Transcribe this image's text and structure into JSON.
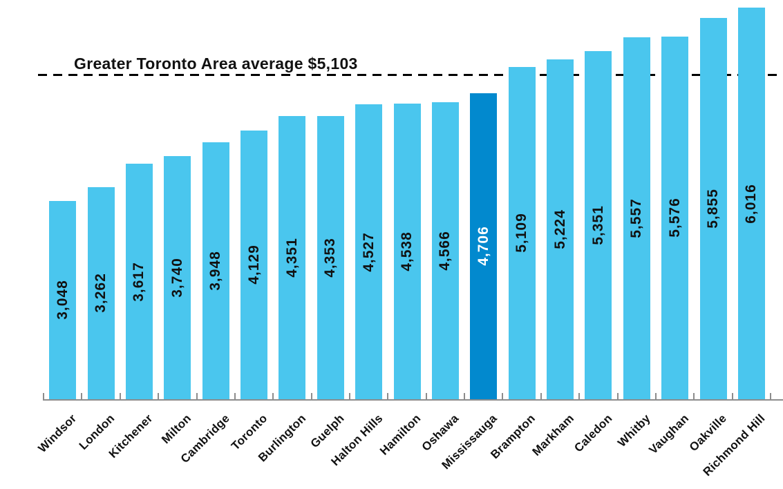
{
  "chart_data": {
    "type": "bar",
    "title": "",
    "xlabel": "",
    "ylabel": "",
    "categories": [
      "Windsor",
      "London",
      "Kitchener",
      "Milton",
      "Cambridge",
      "Toronto",
      "Burlington",
      "Guelph",
      "Halton Hills",
      "Hamilton",
      "Oshawa",
      "Mississauga",
      "Brampton",
      "Markham",
      "Caledon",
      "Whitby",
      "Vaughan",
      "Oakville",
      "Richmond Hill"
    ],
    "values": [
      3048,
      3262,
      3617,
      3740,
      3948,
      4129,
      4351,
      4353,
      4527,
      4538,
      4566,
      4706,
      5109,
      5224,
      5351,
      5557,
      5576,
      5855,
      6016
    ],
    "value_labels": [
      "3,048",
      "3,262",
      "3,617",
      "3,740",
      "3,948",
      "4,129",
      "4,351",
      "4,353",
      "4,527",
      "4,538",
      "4,566",
      "4,706",
      "5,109",
      "5,224",
      "5,351",
      "5,557",
      "5,576",
      "5,855",
      "6,016"
    ],
    "highlight_category": "Mississauga",
    "highlight_index": 11,
    "average_line": {
      "label": "Greater Toronto Area average $5,103",
      "value": 5103
    },
    "ylim": [
      0,
      6100
    ],
    "grid": false,
    "legend_position": "none",
    "value_labels_position": "inside-bar-vertical",
    "category_labels_rotation_deg": 45,
    "colors": {
      "bar": "#4AC6EE",
      "highlight_bar": "#0289CE",
      "value_label": "#111111",
      "highlight_value_label": "#FFFFFF",
      "category_label": "#111111",
      "annotation_text": "#111111",
      "average_line": "#000000",
      "axis": "#8C8C8C"
    }
  }
}
